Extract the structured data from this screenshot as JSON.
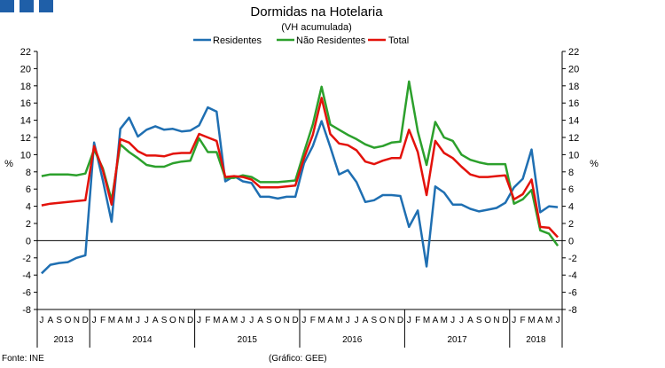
{
  "colors": {
    "brand": "#1f5fa8",
    "residentes": "#1f6fb2",
    "nao_residentes": "#2ca02c",
    "total": "#e3120b",
    "axis": "#000000"
  },
  "footer": {
    "source": "Fonte: INE",
    "credit": "(Gráfico: GEE)"
  },
  "chart_data": {
    "type": "line",
    "title": "Dormidas na Hotelaria",
    "subtitle": "(VH acumulada)",
    "ylabel_left": "%",
    "ylabel_right": "%",
    "ylim": [
      -8,
      22
    ],
    "yticks": [
      -8,
      -6,
      -4,
      -2,
      0,
      2,
      4,
      6,
      8,
      10,
      12,
      14,
      16,
      18,
      20,
      22
    ],
    "legend_position": "top-center",
    "grid": false,
    "month_labels": [
      "J",
      "A",
      "S",
      "O",
      "N",
      "D",
      "J",
      "F",
      "M",
      "A",
      "M",
      "J",
      "J",
      "A",
      "S",
      "O",
      "N",
      "D",
      "J",
      "F",
      "M",
      "A",
      "M",
      "J",
      "J",
      "A",
      "S",
      "O",
      "N",
      "D",
      "J",
      "F",
      "M",
      "A",
      "M",
      "J",
      "J",
      "A",
      "S",
      "O",
      "N",
      "D",
      "J",
      "F",
      "M",
      "A",
      "M",
      "J",
      "J",
      "A",
      "S",
      "O",
      "N",
      "D",
      "J",
      "F",
      "M",
      "A",
      "M",
      "J"
    ],
    "years": [
      {
        "label": "2013",
        "start": 0,
        "count": 6
      },
      {
        "label": "2014",
        "start": 6,
        "count": 12
      },
      {
        "label": "2015",
        "start": 18,
        "count": 12
      },
      {
        "label": "2016",
        "start": 30,
        "count": 12
      },
      {
        "label": "2017",
        "start": 42,
        "count": 12
      },
      {
        "label": "2018",
        "start": 54,
        "count": 6
      }
    ],
    "series": [
      {
        "name": "Residentes",
        "color": "#1f6fb2",
        "values": [
          -3.8,
          -2.8,
          -2.6,
          -2.5,
          -2.0,
          -1.7,
          11.4,
          7.0,
          2.2,
          13.0,
          14.3,
          12.1,
          12.9,
          13.3,
          12.9,
          13.0,
          12.7,
          12.8,
          13.4,
          15.5,
          15.0,
          6.9,
          7.5,
          6.9,
          6.7,
          5.1,
          5.1,
          4.9,
          5.1,
          5.1,
          9.0,
          11.0,
          13.9,
          10.9,
          7.7,
          8.2,
          6.8,
          4.5,
          4.7,
          5.3,
          5.3,
          5.2,
          1.6,
          3.5,
          -3.0,
          6.3,
          5.6,
          4.2,
          4.2,
          3.7,
          3.4,
          3.6,
          3.8,
          4.4,
          6.2,
          7.2,
          10.6,
          3.3,
          4.0,
          3.9
        ]
      },
      {
        "name": "Não Residentes",
        "color": "#2ca02c",
        "values": [
          7.5,
          7.7,
          7.7,
          7.7,
          7.6,
          7.8,
          10.6,
          8.4,
          4.7,
          11.2,
          10.3,
          9.6,
          8.8,
          8.6,
          8.6,
          9.0,
          9.2,
          9.3,
          11.9,
          10.3,
          10.3,
          7.3,
          7.3,
          7.6,
          7.4,
          6.8,
          6.8,
          6.8,
          6.9,
          7.0,
          10.3,
          13.5,
          17.9,
          13.5,
          12.9,
          12.3,
          11.8,
          11.2,
          10.8,
          11.0,
          11.4,
          11.5,
          18.5,
          12.7,
          8.8,
          13.8,
          12.0,
          11.6,
          10.0,
          9.4,
          9.1,
          8.9,
          8.9,
          8.9,
          4.3,
          4.8,
          5.9,
          1.2,
          0.8,
          -0.6
        ]
      },
      {
        "name": "Total",
        "color": "#e3120b",
        "values": [
          4.1,
          4.3,
          4.4,
          4.5,
          4.6,
          4.7,
          11.0,
          8.2,
          4.2,
          11.8,
          11.4,
          10.4,
          9.9,
          9.9,
          9.8,
          10.1,
          10.2,
          10.2,
          12.4,
          12.0,
          11.6,
          7.4,
          7.5,
          7.4,
          7.1,
          6.2,
          6.2,
          6.2,
          6.3,
          6.4,
          9.6,
          12.3,
          16.6,
          12.4,
          11.3,
          11.1,
          10.5,
          9.2,
          8.9,
          9.3,
          9.6,
          9.6,
          12.9,
          10.3,
          5.3,
          11.6,
          10.2,
          9.6,
          8.6,
          7.7,
          7.4,
          7.4,
          7.5,
          7.6,
          4.8,
          5.4,
          7.1,
          1.6,
          1.5,
          0.4
        ]
      }
    ]
  }
}
